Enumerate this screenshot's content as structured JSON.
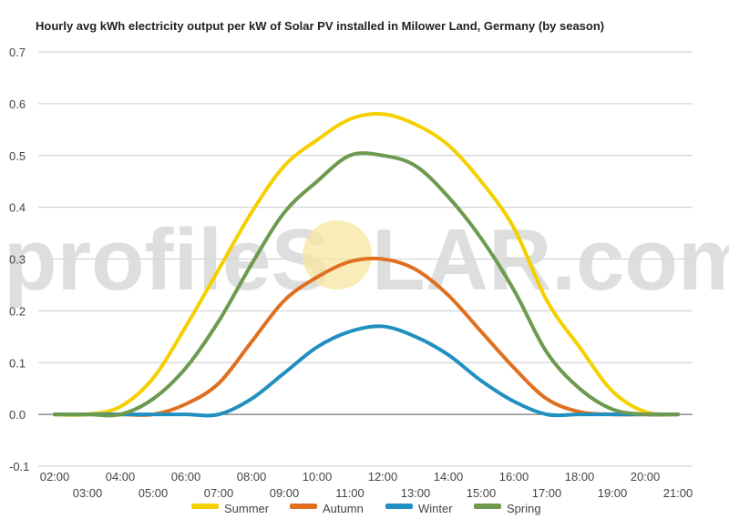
{
  "chart_data": {
    "type": "line",
    "title": "Hourly avg kWh electricity output per kW of Solar PV installed in Milower Land, Germany (by season)",
    "xlabel": "",
    "ylabel": "",
    "watermark": {
      "left": "profileS",
      "right": "LAR.com"
    },
    "ylim": [
      -0.1,
      0.7
    ],
    "yticks": [
      "-0.1",
      "0.0",
      "0.1",
      "0.2",
      "0.3",
      "0.4",
      "0.5",
      "0.6",
      "0.7"
    ],
    "grid": true,
    "legend_position": "bottom",
    "x": [
      "02:00",
      "03:00",
      "04:00",
      "05:00",
      "06:00",
      "07:00",
      "08:00",
      "09:00",
      "10:00",
      "11:00",
      "12:00",
      "13:00",
      "14:00",
      "15:00",
      "16:00",
      "17:00",
      "18:00",
      "19:00",
      "20:00",
      "21:00"
    ],
    "series": [
      {
        "name": "Summer",
        "color": "#f5d000",
        "values": [
          0.0,
          0.0,
          0.015,
          0.07,
          0.17,
          0.28,
          0.39,
          0.48,
          0.53,
          0.57,
          0.58,
          0.56,
          0.52,
          0.45,
          0.36,
          0.22,
          0.13,
          0.045,
          0.005,
          0.0
        ]
      },
      {
        "name": "Autumn",
        "color": "#e07020",
        "values": [
          0.0,
          0.0,
          0.0,
          0.0,
          0.02,
          0.06,
          0.14,
          0.22,
          0.265,
          0.295,
          0.3,
          0.28,
          0.23,
          0.16,
          0.09,
          0.03,
          0.005,
          0.0,
          0.0,
          0.0
        ]
      },
      {
        "name": "Winter",
        "color": "#2090c0",
        "values": [
          0.0,
          0.0,
          0.0,
          0.0,
          0.0,
          0.0,
          0.03,
          0.08,
          0.13,
          0.16,
          0.17,
          0.15,
          0.115,
          0.065,
          0.025,
          0.0,
          0.0,
          0.0,
          0.0,
          0.0
        ]
      },
      {
        "name": "Spring",
        "color": "#6e9a50",
        "values": [
          0.0,
          0.0,
          0.0,
          0.03,
          0.09,
          0.18,
          0.29,
          0.39,
          0.45,
          0.5,
          0.5,
          0.48,
          0.42,
          0.34,
          0.24,
          0.12,
          0.05,
          0.01,
          0.0,
          0.0
        ]
      }
    ]
  }
}
